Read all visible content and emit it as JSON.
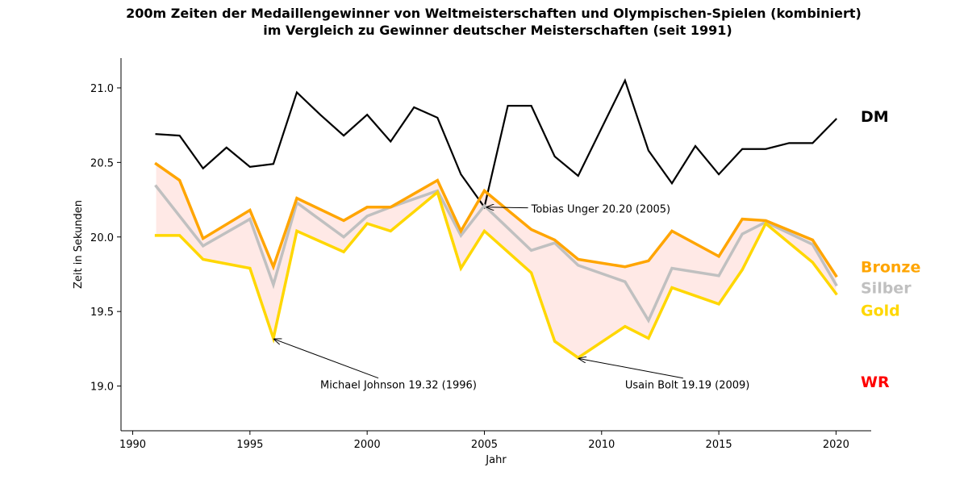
{
  "chart_data": {
    "type": "line",
    "title_line1": "200m Zeiten der Medaillengewinner von Weltmeisterschaften und Olympischen-Spielen (kombiniert)",
    "title_line2": "im Vergleich zu Gewinner deutscher Meisterschaften (seit 1991)",
    "xlabel": "Jahr",
    "ylabel": "Zeit in Sekunden",
    "xlim": [
      1989.5,
      2021.5
    ],
    "ylim": [
      18.7,
      21.2
    ],
    "xticks": [
      1990,
      1995,
      2000,
      2005,
      2010,
      2015,
      2020
    ],
    "yticks": [
      19.0,
      19.5,
      20.0,
      20.5,
      21.0
    ],
    "xtick_labels": [
      "1990",
      "1995",
      "2000",
      "2005",
      "2010",
      "2015",
      "2020"
    ],
    "ytick_labels": [
      "19.0",
      "19.5",
      "20.0",
      "20.5",
      "21.0"
    ],
    "fill_between": {
      "from": "Gold",
      "to": "Bronze",
      "color": "#ffe9e6"
    },
    "series": [
      {
        "name": "DM",
        "color": "#000000",
        "x": [
          1991,
          1992,
          1993,
          1994,
          1995,
          1996,
          1997,
          1998,
          1999,
          2000,
          2001,
          2002,
          2003,
          2004,
          2005,
          2006,
          2007,
          2008,
          2009,
          2010,
          2011,
          2012,
          2013,
          2014,
          2015,
          2016,
          2017,
          2018,
          2019,
          2020
        ],
        "values": [
          20.69,
          20.68,
          20.46,
          20.6,
          20.47,
          20.49,
          20.97,
          20.82,
          20.68,
          20.82,
          20.64,
          20.87,
          20.8,
          20.42,
          20.2,
          20.88,
          20.88,
          20.54,
          20.41,
          20.73,
          21.05,
          20.58,
          20.36,
          20.61,
          20.42,
          20.59,
          20.59,
          20.63,
          20.63,
          20.79
        ]
      },
      {
        "name": "Silber",
        "color": "#c0c0c0",
        "x": [
          1991,
          1993,
          1995,
          1996,
          1997,
          1999,
          2000,
          2001,
          2003,
          2004,
          2005,
          2007,
          2008,
          2009,
          2011,
          2012,
          2013,
          2015,
          2016,
          2017,
          2019,
          2020
        ],
        "values": [
          20.34,
          19.94,
          20.12,
          19.68,
          20.23,
          20.0,
          20.14,
          20.2,
          20.31,
          20.01,
          20.21,
          19.91,
          19.96,
          19.81,
          19.7,
          19.44,
          19.79,
          19.74,
          20.02,
          20.1,
          19.95,
          19.68
        ]
      },
      {
        "name": "Bronze",
        "color": "#ffa500",
        "x": [
          1991,
          1992,
          1993,
          1995,
          1996,
          1997,
          1999,
          2000,
          2001,
          2003,
          2004,
          2005,
          2007,
          2008,
          2009,
          2011,
          2012,
          2013,
          2015,
          2016,
          2017,
          2019,
          2020
        ],
        "values": [
          20.49,
          20.38,
          19.99,
          20.18,
          19.8,
          20.26,
          20.11,
          20.2,
          20.2,
          20.38,
          20.04,
          20.31,
          20.05,
          19.98,
          19.85,
          19.8,
          19.84,
          20.04,
          19.87,
          20.12,
          20.11,
          19.98,
          19.74
        ]
      },
      {
        "name": "Gold",
        "color": "#ffd700",
        "x": [
          1991,
          1992,
          1993,
          1995,
          1996,
          1997,
          1999,
          2000,
          2001,
          2003,
          2004,
          2005,
          2007,
          2008,
          2009,
          2011,
          2012,
          2013,
          2015,
          2016,
          2017,
          2019,
          2020
        ],
        "values": [
          20.01,
          20.01,
          19.85,
          19.79,
          19.32,
          20.04,
          19.9,
          20.09,
          20.04,
          20.3,
          19.79,
          20.04,
          19.76,
          19.3,
          19.19,
          19.4,
          19.32,
          19.66,
          19.55,
          19.78,
          20.09,
          19.83,
          19.62
        ]
      }
    ],
    "series_labels": [
      {
        "text": "DM",
        "color": "#000000",
        "y": 20.81
      },
      {
        "text": "Bronze",
        "color": "#ffa500",
        "y": 19.8
      },
      {
        "text": "Silber",
        "color": "#c0c0c0",
        "y": 19.66
      },
      {
        "text": "Gold",
        "color": "#ffd700",
        "y": 19.51
      },
      {
        "text": "WR",
        "color": "#ff0000",
        "y": 19.03
      }
    ],
    "annotations": [
      {
        "text": "Tobias Unger 20.20 (2005)",
        "point": [
          2005,
          20.2
        ],
        "text_pos": [
          2007,
          20.19
        ]
      },
      {
        "text": "Michael Johnson 19.32 (1996)",
        "point": [
          1996,
          19.32
        ],
        "text_pos": [
          1998,
          19.01
        ]
      },
      {
        "text": "Usain Bolt 19.19 (2009)",
        "point": [
          2009,
          19.19
        ],
        "text_pos": [
          2011,
          19.01
        ]
      }
    ]
  }
}
